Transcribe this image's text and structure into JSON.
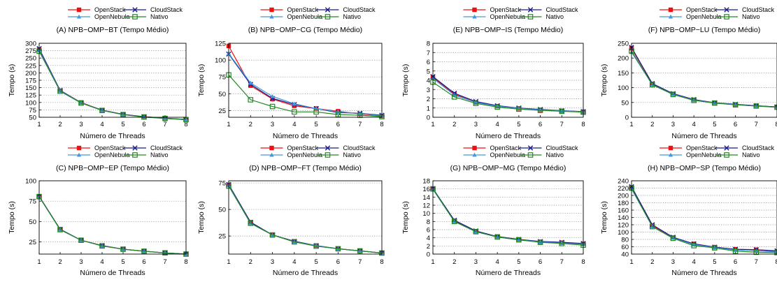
{
  "legend_labels": [
    "OpenStack",
    "CloudStack",
    "OpenNebula",
    "Nativo"
  ],
  "series_colors": {
    "OpenStack": "#ee1111",
    "CloudStack": "#1a1a8c",
    "OpenNebula": "#4499dd",
    "Nativo": "#228822"
  },
  "series_markers": {
    "OpenStack": "filled-square",
    "CloudStack": "x-cross",
    "OpenNebula": "triangle",
    "Nativo": "open-square"
  },
  "chart_data": [
    {
      "type": "line",
      "title": "(A) NPB−OMP−BT (Tempo Médio)",
      "xlabel": "Número de Threads",
      "ylabel": "Tempo (s)",
      "x": [
        1,
        2,
        3,
        4,
        5,
        6,
        7,
        8
      ],
      "xlim": [
        1,
        8
      ],
      "ylim": [
        50,
        300
      ],
      "yticks": [
        50,
        75,
        100,
        125,
        150,
        175,
        200,
        225,
        250,
        275,
        300
      ],
      "grid": "horizontal-dotted",
      "legend": "top",
      "series": [
        {
          "name": "OpenStack",
          "values": [
            278,
            140,
            100,
            74,
            60,
            52,
            47,
            42
          ]
        },
        {
          "name": "CloudStack",
          "values": [
            282,
            141,
            99,
            74,
            60,
            52,
            47,
            43
          ]
        },
        {
          "name": "OpenNebula",
          "values": [
            276,
            139,
            99,
            73,
            59,
            51,
            46,
            42
          ]
        },
        {
          "name": "Nativo",
          "values": [
            273,
            138,
            98,
            73,
            59,
            51,
            46,
            42
          ]
        }
      ]
    },
    {
      "type": "line",
      "title": "(B) NPB−OMP−CG (Tempo Médio)",
      "xlabel": "Número de Threads",
      "ylabel": "Tempo (s)",
      "x": [
        1,
        2,
        3,
        4,
        5,
        6,
        7,
        8
      ],
      "xlim": [
        1,
        8
      ],
      "ylim": [
        15,
        125
      ],
      "yticks": [
        25,
        50,
        75,
        100,
        125
      ],
      "grid": "horizontal-dotted",
      "legend": "top",
      "series": [
        {
          "name": "OpenStack",
          "values": [
            121,
            62,
            42,
            32,
            28,
            24,
            20,
            17
          ]
        },
        {
          "name": "CloudStack",
          "values": [
            109,
            64,
            43,
            34,
            28,
            22,
            21,
            18
          ]
        },
        {
          "name": "OpenNebula",
          "values": [
            110,
            66,
            46,
            35,
            28,
            23,
            21,
            17
          ]
        },
        {
          "name": "Nativo",
          "values": [
            78,
            41,
            31,
            23,
            23,
            19,
            18,
            16
          ]
        }
      ]
    },
    {
      "type": "line",
      "title": "(E) NPB−OMP−IS (Tempo Médio)",
      "xlabel": "Número de Threads",
      "ylabel": "Tempo (s)",
      "x": [
        1,
        2,
        3,
        4,
        5,
        6,
        7,
        8
      ],
      "xlim": [
        1,
        8
      ],
      "ylim": [
        0,
        8
      ],
      "yticks": [
        0,
        1,
        2,
        3,
        4,
        5,
        6,
        7,
        8
      ],
      "grid": "horizontal-dotted",
      "legend": "top",
      "series": [
        {
          "name": "OpenStack",
          "values": [
            4.3,
            2.5,
            1.6,
            1.2,
            0.95,
            0.8,
            0.7,
            0.6
          ]
        },
        {
          "name": "CloudStack",
          "values": [
            4.4,
            2.6,
            1.7,
            1.25,
            1.0,
            0.85,
            0.72,
            0.62
          ]
        },
        {
          "name": "OpenNebula",
          "values": [
            4.2,
            2.4,
            1.6,
            1.2,
            0.95,
            0.8,
            0.7,
            0.6
          ]
        },
        {
          "name": "Nativo",
          "values": [
            3.8,
            2.2,
            1.5,
            1.1,
            0.88,
            0.75,
            0.65,
            0.55
          ]
        }
      ]
    },
    {
      "type": "line",
      "title": "(F) NPB−OMP−LU (Tempo Médio)",
      "xlabel": "Número de Threads",
      "ylabel": "Tempo (s)",
      "x": [
        1,
        2,
        3,
        4,
        5,
        6,
        7,
        8
      ],
      "xlim": [
        1,
        8
      ],
      "ylim": [
        0,
        250
      ],
      "yticks": [
        0,
        50,
        100,
        150,
        200,
        250
      ],
      "grid": "horizontal-dotted",
      "legend": "top",
      "series": [
        {
          "name": "OpenStack",
          "values": [
            233,
            113,
            79,
            59,
            49,
            43,
            39,
            35
          ]
        },
        {
          "name": "CloudStack",
          "values": [
            236,
            114,
            80,
            60,
            49,
            44,
            39,
            35
          ]
        },
        {
          "name": "OpenNebula",
          "values": [
            220,
            110,
            78,
            58,
            48,
            43,
            38,
            34
          ]
        },
        {
          "name": "Nativo",
          "values": [
            224,
            110,
            77,
            57,
            48,
            42,
            38,
            34
          ]
        }
      ]
    },
    {
      "type": "line",
      "title": "(C) NPB−OMP−EP (Tempo Médio)",
      "xlabel": "Número de Threads",
      "ylabel": "Tempo (s)",
      "x": [
        1,
        2,
        3,
        4,
        5,
        6,
        7,
        8
      ],
      "xlim": [
        1,
        8
      ],
      "ylim": [
        10,
        100
      ],
      "yticks": [
        25,
        50,
        75,
        100
      ],
      "grid": "horizontal-dotted",
      "legend": "top",
      "series": [
        {
          "name": "OpenStack",
          "values": [
            81,
            40.5,
            27,
            20.5,
            16,
            13.5,
            11.5,
            10
          ]
        },
        {
          "name": "CloudStack",
          "values": [
            81,
            40.5,
            27,
            20.5,
            16,
            13.5,
            11.5,
            10
          ]
        },
        {
          "name": "OpenNebula",
          "values": [
            80.5,
            40,
            27,
            20,
            16,
            13.5,
            11.5,
            10
          ]
        },
        {
          "name": "Nativo",
          "values": [
            80.5,
            40,
            27,
            20,
            16,
            13.5,
            11.5,
            10
          ]
        }
      ]
    },
    {
      "type": "line",
      "title": "(D) NPB−OMP−FT (Tempo Médio)",
      "xlabel": "Número de Threads",
      "ylabel": "Tempo (s)",
      "x": [
        1,
        2,
        3,
        4,
        5,
        6,
        7,
        8
      ],
      "xlim": [
        1,
        8
      ],
      "ylim": [
        8,
        77
      ],
      "yticks": [
        25,
        50,
        75
      ],
      "grid": "horizontal-dotted",
      "legend": "top",
      "series": [
        {
          "name": "OpenStack",
          "values": [
            73,
            38,
            26,
            20,
            16,
            13,
            11,
            9
          ]
        },
        {
          "name": "CloudStack",
          "values": [
            73.5,
            38,
            26,
            20,
            16,
            13,
            11,
            9
          ]
        },
        {
          "name": "OpenNebula",
          "values": [
            72.5,
            37,
            26,
            19.5,
            16,
            13,
            11,
            9
          ]
        },
        {
          "name": "Nativo",
          "values": [
            72,
            37,
            26,
            19.5,
            15.5,
            13,
            11,
            9
          ]
        }
      ]
    },
    {
      "type": "line",
      "title": "(G) NPB−OMP−MG (Tempo Médio)",
      "xlabel": "Número de Threads",
      "ylabel": "Tempo (s)",
      "x": [
        1,
        2,
        3,
        4,
        5,
        6,
        7,
        8
      ],
      "xlim": [
        1,
        8
      ],
      "ylim": [
        0,
        18
      ],
      "yticks": [
        0,
        2,
        4,
        6,
        8,
        10,
        12,
        14,
        16,
        18
      ],
      "grid": "horizontal-dotted",
      "legend": "top",
      "series": [
        {
          "name": "OpenStack",
          "values": [
            16,
            8.2,
            5.6,
            4.3,
            3.6,
            3.0,
            2.8,
            2.5
          ]
        },
        {
          "name": "CloudStack",
          "values": [
            16.1,
            8.3,
            5.7,
            4.3,
            3.6,
            3.1,
            2.9,
            2.6
          ]
        },
        {
          "name": "OpenNebula",
          "values": [
            15.9,
            8.0,
            5.5,
            4.2,
            3.5,
            3.0,
            2.7,
            2.4
          ]
        },
        {
          "name": "Nativo",
          "values": [
            16,
            8.0,
            5.5,
            4.2,
            3.5,
            2.9,
            2.6,
            2.2
          ]
        }
      ]
    },
    {
      "type": "line",
      "title": "(H) NPB−OMP−SP (Tempo Médio)",
      "xlabel": "Número de Threads",
      "ylabel": "Tempo (s)",
      "x": [
        1,
        2,
        3,
        4,
        5,
        6,
        7,
        8
      ],
      "xlim": [
        1,
        8
      ],
      "ylim": [
        40,
        240
      ],
      "yticks": [
        40,
        60,
        80,
        100,
        120,
        140,
        160,
        180,
        200,
        220,
        240
      ],
      "grid": "horizontal-dotted",
      "legend": "top",
      "series": [
        {
          "name": "OpenStack",
          "values": [
            222,
            118,
            85,
            68,
            59,
            53,
            52,
            47
          ]
        },
        {
          "name": "CloudStack",
          "values": [
            224,
            120,
            86,
            68,
            59,
            53,
            52,
            49
          ]
        },
        {
          "name": "OpenNebula",
          "values": [
            218,
            115,
            84,
            66,
            58,
            51,
            49,
            46
          ]
        },
        {
          "name": "Nativo",
          "values": [
            220,
            115,
            83,
            63,
            57,
            48,
            45,
            44
          ]
        }
      ]
    }
  ]
}
